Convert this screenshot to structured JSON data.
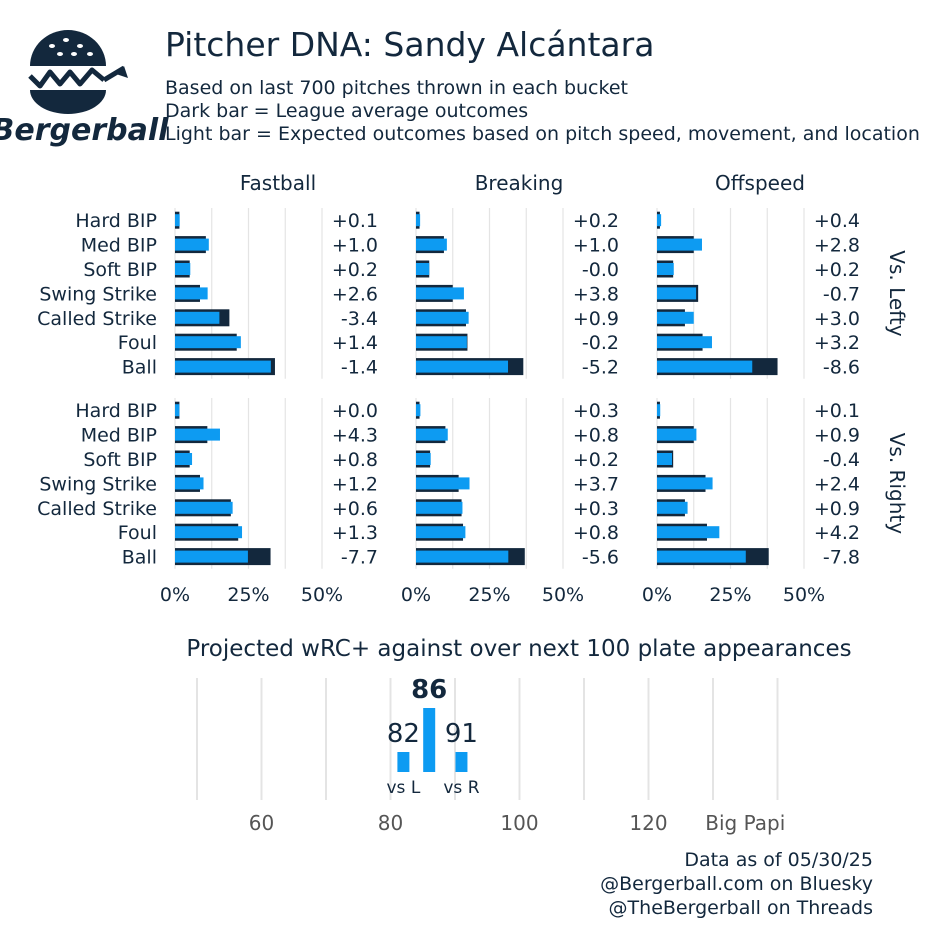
{
  "colors": {
    "dark": "#13283d",
    "light": "#0d9bf2",
    "grid": "#e4e4e4",
    "text": "#13283d",
    "gray": "#555555"
  },
  "brand": {
    "name": "Bergerball",
    "logo": "burger-chart-logo-icon"
  },
  "header": {
    "title": "Pitcher DNA: Sandy Alcántara",
    "subtitle_lines": [
      "Based on last 700 pitches thrown in each bucket",
      "Dark bar = League average outcomes",
      "Light bar = Expected outcomes based on pitch speed, movement, and location"
    ]
  },
  "chart_data": [
    {
      "type": "bar",
      "orientation": "horizontal",
      "facets_columns": [
        "Fastball",
        "Breaking",
        "Offspeed"
      ],
      "facets_rows": [
        "Vs. Lefty",
        "Vs. Righty"
      ],
      "categories": [
        "Hard BIP",
        "Med BIP",
        "Soft BIP",
        "Swing Strike",
        "Called Strike",
        "Foul",
        "Ball"
      ],
      "x_ticks": [
        "0%",
        "25%",
        "50%"
      ],
      "xlim": [
        0,
        50
      ],
      "series_legend": {
        "dark": "League average",
        "light": "Expected"
      },
      "panels": [
        {
          "column": "Fastball",
          "row": "Vs. Lefty",
          "league": [
            1.5,
            10.5,
            5.0,
            8.5,
            18.5,
            21.0,
            34.0
          ],
          "expected": [
            1.6,
            11.5,
            5.2,
            11.1,
            15.1,
            22.4,
            32.6
          ],
          "diff_labels": [
            "+0.1",
            "+1.0",
            "+0.2",
            "+2.6",
            "-3.4",
            "+1.4",
            "-1.4"
          ]
        },
        {
          "column": "Breaking",
          "row": "Vs. Lefty",
          "league": [
            1.2,
            9.5,
            4.5,
            12.5,
            17.0,
            17.5,
            36.5
          ],
          "expected": [
            1.4,
            10.5,
            4.5,
            16.3,
            17.9,
            17.3,
            31.3
          ],
          "diff_labels": [
            "+0.2",
            "+1.0",
            "-0.0",
            "+3.8",
            "+0.9",
            "-0.2",
            "-5.2"
          ]
        },
        {
          "column": "Offspeed",
          "row": "Vs. Lefty",
          "league": [
            1.0,
            12.5,
            5.5,
            14.0,
            9.5,
            15.5,
            41.0
          ],
          "expected": [
            1.4,
            15.3,
            5.7,
            13.3,
            12.5,
            18.7,
            32.4
          ],
          "diff_labels": [
            "+0.4",
            "+2.8",
            "+0.2",
            "-0.7",
            "+3.0",
            "+3.2",
            "-8.6"
          ]
        },
        {
          "column": "Fastball",
          "row": "Vs. Righty",
          "league": [
            1.5,
            11.0,
            5.0,
            8.5,
            19.0,
            21.5,
            32.5
          ],
          "expected": [
            1.5,
            15.3,
            5.8,
            9.7,
            19.6,
            22.8,
            24.8
          ],
          "diff_labels": [
            "+0.0",
            "+4.3",
            "+0.8",
            "+1.2",
            "+0.6",
            "+1.3",
            "-7.7"
          ]
        },
        {
          "column": "Breaking",
          "row": "Vs. Righty",
          "league": [
            1.2,
            10.0,
            4.8,
            14.5,
            15.5,
            16.0,
            37.0
          ],
          "expected": [
            1.5,
            10.8,
            5.0,
            18.2,
            15.8,
            16.8,
            31.4
          ],
          "diff_labels": [
            "+0.3",
            "+0.8",
            "+0.2",
            "+3.7",
            "+0.3",
            "+0.8",
            "-5.6"
          ]
        },
        {
          "column": "Offspeed",
          "row": "Vs. Righty",
          "league": [
            1.0,
            12.5,
            5.5,
            16.5,
            9.5,
            17.0,
            38.0
          ],
          "expected": [
            1.1,
            13.4,
            5.1,
            18.9,
            10.4,
            21.2,
            30.2
          ],
          "diff_labels": [
            "+0.1",
            "+0.9",
            "-0.4",
            "+2.4",
            "+0.9",
            "+4.2",
            "-7.8"
          ]
        }
      ]
    },
    {
      "type": "bar",
      "title": "Projected wRC+ against over next 100 plate appearances",
      "xlim": [
        40,
        140
      ],
      "x_ticks": [
        {
          "value": 60,
          "label": "60"
        },
        {
          "value": 80,
          "label": "80"
        },
        {
          "value": 100,
          "label": "100"
        },
        {
          "value": 120,
          "label": "120"
        },
        {
          "value": 135,
          "label": "Big Papi"
        }
      ],
      "gridlines": [
        50,
        60,
        70,
        80,
        90,
        100,
        110,
        120,
        130,
        140
      ],
      "bars": [
        {
          "label": "vs L",
          "value": 82,
          "value_label": "82",
          "main": false
        },
        {
          "label": "",
          "value": 86,
          "value_label": "86",
          "main": true
        },
        {
          "label": "vs R",
          "value": 91,
          "value_label": "91",
          "main": false
        }
      ]
    }
  ],
  "footer": {
    "lines": [
      "Data as of 05/30/25",
      "@Bergerball.com on Bluesky",
      "@TheBergerball on Threads"
    ]
  }
}
